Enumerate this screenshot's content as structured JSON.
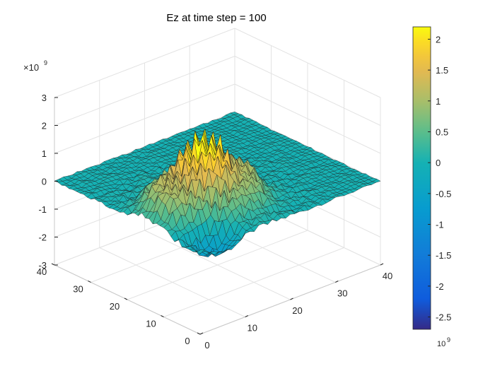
{
  "chart_data": {
    "type": "surface",
    "title": "Ez at time step = 100",
    "x": {
      "label": "",
      "range": [
        0,
        40
      ],
      "ticks": [
        0,
        10,
        20,
        30,
        40
      ]
    },
    "y": {
      "label": "",
      "range": [
        0,
        40
      ],
      "ticks": [
        0,
        10,
        20,
        30,
        40
      ]
    },
    "z": {
      "label": "",
      "range": [
        -3,
        3
      ],
      "ticks": [
        -3,
        -2,
        -1,
        0,
        1,
        2,
        3
      ],
      "multiplier_label": "×10",
      "multiplier_exponent": "9"
    },
    "colorbar": {
      "range": [
        -2.7,
        2.2
      ],
      "ticks": [
        2,
        1.5,
        1,
        0.5,
        0,
        -0.5,
        -1,
        -1.5,
        -2,
        -2.5
      ],
      "tick_labels": [
        "2",
        "1.5",
        "1",
        "0.5",
        "0",
        "-0.5",
        "-1",
        "-1.5",
        "-2",
        "-2.5"
      ],
      "multiplier_label": "10",
      "multiplier_exponent": "9",
      "colormap": "parula"
    },
    "surface": {
      "grid_size": 40,
      "description_params": {
        "peak_center_xy": [
          12,
          14
        ],
        "peak_value": 2.4,
        "peak_sigma": 4.8,
        "ring_radius": 9,
        "ring_value": 0.6,
        "background": 0.0
      }
    }
  }
}
